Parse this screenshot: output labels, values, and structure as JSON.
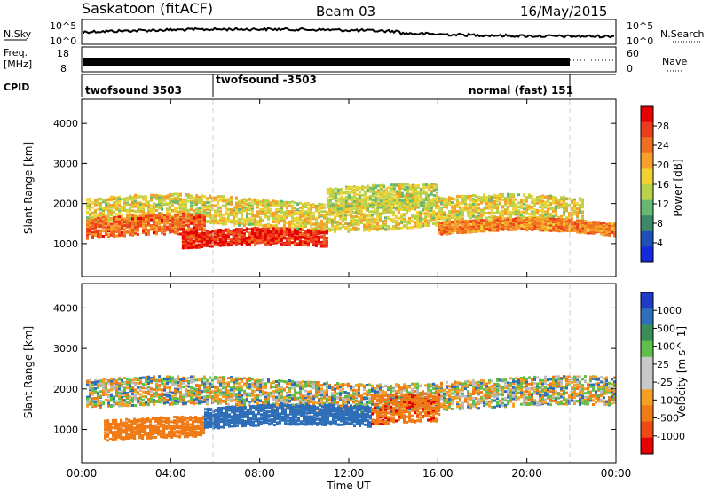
{
  "header": {
    "station": "Saskatoon (fitACF)",
    "beam": "Beam 03",
    "date": "16/May/2015"
  },
  "left_labels": {
    "nsky": "N.Sky",
    "freq": "Freq.",
    "freq_unit": "[MHz]",
    "cpid": "CPID"
  },
  "right_labels": {
    "nsearch": "N.Search",
    "nave": "Nave"
  },
  "noise_panel": {
    "left_ticks": [
      "10^5",
      "10^0"
    ],
    "right_ticks": [
      "10^5",
      "10^0"
    ]
  },
  "freq_panel": {
    "left_ticks": [
      "18",
      "8"
    ],
    "right_ticks": [
      "60",
      "0"
    ]
  },
  "cpid_panel": {
    "entries": [
      "twofsound 3503",
      "twofsound -3503",
      "normal (fast) 151"
    ]
  },
  "colors": {
    "power": [
      "#1428dc",
      "#1f4fb8",
      "#3d8a6a",
      "#66b872",
      "#b8d24a",
      "#f0d232",
      "#f5a028",
      "#f07020",
      "#ee3c1e",
      "#e60000"
    ],
    "velocity": [
      "#1e3cc8",
      "#2f6eb8",
      "#3c8c5a",
      "#5fbf4a",
      "#c8c8c8",
      "#c8c8c8",
      "#f5a023",
      "#f07a14",
      "#ef4a14",
      "#e60000"
    ],
    "ground_scatter": "#bdbdbd"
  },
  "chart_data": [
    {
      "type": "heatmap",
      "title": "",
      "xlabel": "Time UT",
      "ylabel": "Slant Range [km]",
      "x_ticks": [
        "00:00",
        "04:00",
        "08:00",
        "12:00",
        "16:00",
        "20:00",
        "00:00"
      ],
      "y_ticks": [
        "1000",
        "2000",
        "3000",
        "4000"
      ],
      "xlim": [
        0,
        24
      ],
      "ylim": [
        180,
        4600
      ],
      "colorbar": {
        "label": "Power [dB]",
        "ticks": [
          "4",
          "8",
          "12",
          "16",
          "20",
          "24",
          "28"
        ],
        "range": [
          0,
          30
        ]
      },
      "echo_bands": [
        {
          "t_start": 0.2,
          "t_end": 22.5,
          "range_center_km": 1800,
          "range_half_width_km": 350,
          "power_db": 16
        },
        {
          "t_start": 0.2,
          "t_end": 5.5,
          "range_center_km": 1400,
          "range_half_width_km": 250,
          "power_db": 24
        },
        {
          "t_start": 4.5,
          "t_end": 11.0,
          "range_center_km": 1100,
          "range_half_width_km": 200,
          "power_db": 28
        },
        {
          "t_start": 11.0,
          "t_end": 16.0,
          "range_center_km": 2100,
          "range_half_width_km": 300,
          "power_db": 14
        },
        {
          "t_start": 16.0,
          "t_end": 24.0,
          "range_center_km": 1400,
          "range_half_width_km": 150,
          "power_db": 22
        }
      ]
    },
    {
      "type": "heatmap",
      "title": "",
      "xlabel": "Time UT",
      "ylabel": "Slant Range [km]",
      "x_ticks": [
        "00:00",
        "04:00",
        "08:00",
        "12:00",
        "16:00",
        "20:00",
        "00:00"
      ],
      "y_ticks": [
        "1000",
        "2000",
        "3000",
        "4000"
      ],
      "xlim": [
        0,
        24
      ],
      "ylim": [
        180,
        4600
      ],
      "colorbar": {
        "label": "Velocity [m s^-1]",
        "ticks": [
          "1000",
          "500",
          "100",
          "25",
          "-25",
          "-100",
          "-500",
          "-1000"
        ]
      },
      "echo_bands": [
        {
          "t_start": 0.2,
          "t_end": 24.0,
          "range_center_km": 1900,
          "range_half_width_km": 350,
          "velocity_ms": 0
        },
        {
          "t_start": 1.0,
          "t_end": 5.5,
          "range_center_km": 1000,
          "range_half_width_km": 250,
          "velocity_ms": -300
        },
        {
          "t_start": 5.5,
          "t_end": 13.0,
          "range_center_km": 1300,
          "range_half_width_km": 250,
          "velocity_ms": 300
        },
        {
          "t_start": 13.0,
          "t_end": 16.0,
          "range_center_km": 1500,
          "range_half_width_km": 350,
          "velocity_ms": -400
        }
      ]
    }
  ]
}
